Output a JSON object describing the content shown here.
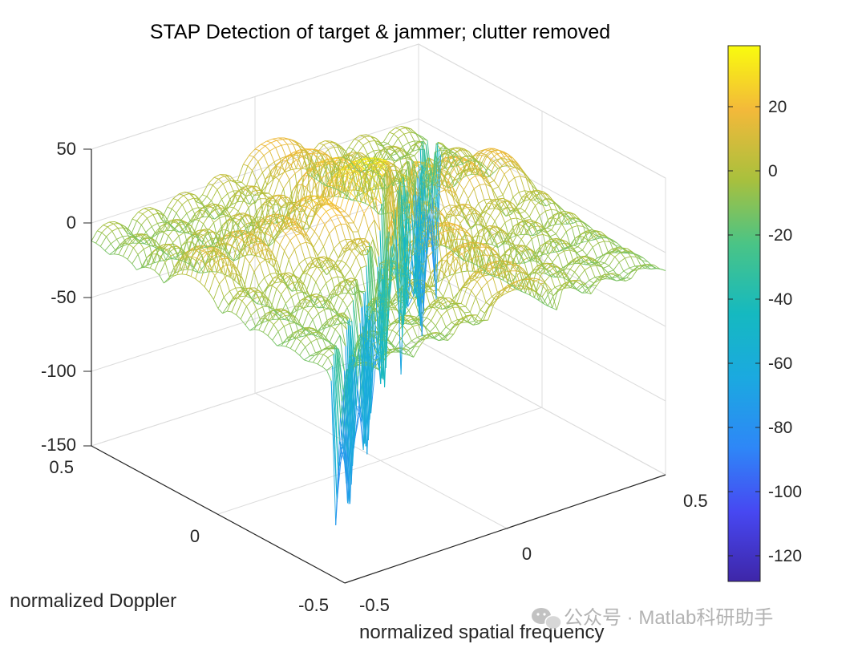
{
  "chart_data": {
    "type": "mesh3d",
    "title": "STAP Detection of target & jammer; clutter removed",
    "xlabel": "normalized spatial frequency",
    "ylabel": "normalized Doppler",
    "zlabel": "",
    "xlim": [
      -0.5,
      0.5
    ],
    "ylim": [
      -0.5,
      0.5
    ],
    "zlim": [
      -150,
      50
    ],
    "x_ticks": [
      "-0.5",
      "0",
      "0.5"
    ],
    "y_ticks": [
      "-0.5",
      "0",
      "0.5"
    ],
    "z_ticks": [
      "50",
      "0",
      "-50",
      "-100",
      "-150"
    ],
    "grid": true,
    "colormap": "parula",
    "colorbar": {
      "range": [
        -128,
        39
      ],
      "ticks": [
        "20",
        "0",
        "-20",
        "-40",
        "-60",
        "-80",
        "-100",
        "-120"
      ]
    },
    "surface": {
      "description": "sidelobe pattern with a strong peak near the target",
      "peak": {
        "x": 0.05,
        "y": 0.1,
        "z": 39
      },
      "null_notch": {
        "label": "jammer/clutter null along a diagonal ridge",
        "z_min": -128
      }
    },
    "colors": {
      "low": "#3e26a8",
      "mid": "#15b9c0",
      "high": "#f9fb0e",
      "axis": "#262626"
    }
  },
  "watermark": {
    "icon": "wechat-icon",
    "text": "公众号 · Matlab科研助手"
  }
}
